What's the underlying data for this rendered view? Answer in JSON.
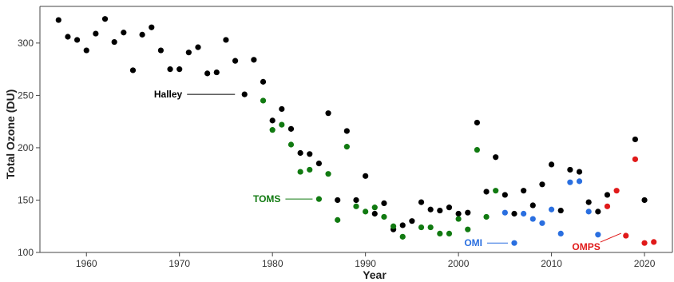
{
  "chart_data": {
    "type": "scatter",
    "title": "",
    "xlabel": "Year",
    "ylabel": "Total Ozone (DU)",
    "xlim": [
      1955,
      2023
    ],
    "ylim": [
      100,
      335
    ],
    "x_ticks": [
      1960,
      1970,
      1980,
      1990,
      2000,
      2010,
      2020
    ],
    "y_ticks": [
      100,
      150,
      200,
      250,
      300
    ],
    "grid": false,
    "legend": "none",
    "series": [
      {
        "name": "Halley",
        "color": "#000000",
        "label_anchor": {
          "x": 1977,
          "y": 251
        },
        "points": [
          {
            "x": 1957,
            "y": 322
          },
          {
            "x": 1958,
            "y": 306
          },
          {
            "x": 1959,
            "y": 303
          },
          {
            "x": 1960,
            "y": 293
          },
          {
            "x": 1961,
            "y": 309
          },
          {
            "x": 1962,
            "y": 323
          },
          {
            "x": 1963,
            "y": 301
          },
          {
            "x": 1964,
            "y": 310
          },
          {
            "x": 1965,
            "y": 274
          },
          {
            "x": 1966,
            "y": 308
          },
          {
            "x": 1967,
            "y": 315
          },
          {
            "x": 1968,
            "y": 293
          },
          {
            "x": 1969,
            "y": 275
          },
          {
            "x": 1970,
            "y": 275
          },
          {
            "x": 1971,
            "y": 291
          },
          {
            "x": 1972,
            "y": 296
          },
          {
            "x": 1973,
            "y": 271
          },
          {
            "x": 1974,
            "y": 272
          },
          {
            "x": 1975,
            "y": 303
          },
          {
            "x": 1976,
            "y": 283
          },
          {
            "x": 1977,
            "y": 251
          },
          {
            "x": 1978,
            "y": 284
          },
          {
            "x": 1979,
            "y": 263
          },
          {
            "x": 1980,
            "y": 226
          },
          {
            "x": 1981,
            "y": 237
          },
          {
            "x": 1982,
            "y": 218
          },
          {
            "x": 1983,
            "y": 195
          },
          {
            "x": 1984,
            "y": 194
          },
          {
            "x": 1985,
            "y": 185
          },
          {
            "x": 1986,
            "y": 233
          },
          {
            "x": 1987,
            "y": 150
          },
          {
            "x": 1988,
            "y": 216
          },
          {
            "x": 1989,
            "y": 150
          },
          {
            "x": 1990,
            "y": 173
          },
          {
            "x": 1991,
            "y": 137
          },
          {
            "x": 1992,
            "y": 147
          },
          {
            "x": 1993,
            "y": 122
          },
          {
            "x": 1994,
            "y": 126
          },
          {
            "x": 1995,
            "y": 130
          },
          {
            "x": 1996,
            "y": 148
          },
          {
            "x": 1997,
            "y": 141
          },
          {
            "x": 1998,
            "y": 140
          },
          {
            "x": 1999,
            "y": 143
          },
          {
            "x": 2000,
            "y": 137
          },
          {
            "x": 2001,
            "y": 138
          },
          {
            "x": 2002,
            "y": 224
          },
          {
            "x": 2003,
            "y": 158
          },
          {
            "x": 2004,
            "y": 191
          },
          {
            "x": 2005,
            "y": 155
          },
          {
            "x": 2006,
            "y": 137
          },
          {
            "x": 2007,
            "y": 159
          },
          {
            "x": 2008,
            "y": 145
          },
          {
            "x": 2009,
            "y": 165
          },
          {
            "x": 2010,
            "y": 184
          },
          {
            "x": 2011,
            "y": 140
          },
          {
            "x": 2012,
            "y": 179
          },
          {
            "x": 2013,
            "y": 177
          },
          {
            "x": 2014,
            "y": 148
          },
          {
            "x": 2015,
            "y": 139
          },
          {
            "x": 2016,
            "y": 155
          },
          {
            "x": 2019,
            "y": 208
          },
          {
            "x": 2020,
            "y": 150
          }
        ]
      },
      {
        "name": "TOMS",
        "color": "#117a11",
        "label_anchor": {
          "x": 1985,
          "y": 151
        },
        "points": [
          {
            "x": 1979,
            "y": 245
          },
          {
            "x": 1980,
            "y": 217
          },
          {
            "x": 1981,
            "y": 222
          },
          {
            "x": 1982,
            "y": 203
          },
          {
            "x": 1983,
            "y": 177
          },
          {
            "x": 1984,
            "y": 179
          },
          {
            "x": 1985,
            "y": 151
          },
          {
            "x": 1986,
            "y": 175
          },
          {
            "x": 1987,
            "y": 131
          },
          {
            "x": 1988,
            "y": 201
          },
          {
            "x": 1989,
            "y": 144
          },
          {
            "x": 1990,
            "y": 139
          },
          {
            "x": 1991,
            "y": 143
          },
          {
            "x": 1992,
            "y": 134
          },
          {
            "x": 1993,
            "y": 125
          },
          {
            "x": 1994,
            "y": 115
          },
          {
            "x": 1996,
            "y": 124
          },
          {
            "x": 1997,
            "y": 124
          },
          {
            "x": 1998,
            "y": 118
          },
          {
            "x": 1999,
            "y": 118
          },
          {
            "x": 2000,
            "y": 132
          },
          {
            "x": 2001,
            "y": 122
          },
          {
            "x": 2002,
            "y": 198
          },
          {
            "x": 2003,
            "y": 134
          },
          {
            "x": 2004,
            "y": 159
          }
        ]
      },
      {
        "name": "OMI",
        "color": "#2a6fe0",
        "label_anchor": {
          "x": 2006,
          "y": 109
        },
        "points": [
          {
            "x": 2005,
            "y": 138
          },
          {
            "x": 2006,
            "y": 109
          },
          {
            "x": 2007,
            "y": 137
          },
          {
            "x": 2008,
            "y": 132
          },
          {
            "x": 2009,
            "y": 128
          },
          {
            "x": 2010,
            "y": 141
          },
          {
            "x": 2011,
            "y": 118
          },
          {
            "x": 2012,
            "y": 167
          },
          {
            "x": 2013,
            "y": 168
          },
          {
            "x": 2014,
            "y": 139
          },
          {
            "x": 2015,
            "y": 117
          }
        ]
      },
      {
        "name": "OMPS",
        "color": "#e01a1a",
        "label_anchor": {
          "x": 2018,
          "y": 116
        },
        "points": [
          {
            "x": 2016,
            "y": 144
          },
          {
            "x": 2017,
            "y": 159
          },
          {
            "x": 2018,
            "y": 116
          },
          {
            "x": 2019,
            "y": 189
          },
          {
            "x": 2020,
            "y": 109
          },
          {
            "x": 2021,
            "y": 110
          }
        ]
      }
    ]
  }
}
